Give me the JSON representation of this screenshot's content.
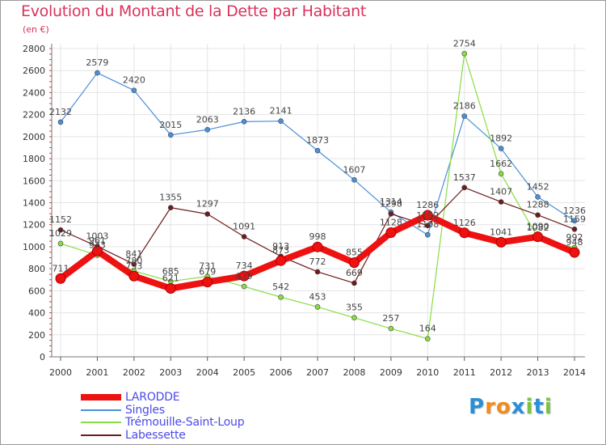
{
  "chart_data": {
    "type": "line",
    "title": "Evolution du Montant de la Dette par Habitant",
    "ylabel": "(en €)",
    "x": [
      "2000",
      "2001",
      "2002",
      "2003",
      "2004",
      "2005",
      "2006",
      "2007",
      "2008",
      "2009",
      "2010",
      "2011",
      "2012",
      "2013",
      "2014"
    ],
    "ylim": [
      0,
      2800
    ],
    "yticks": [
      "0",
      "200",
      "400",
      "600",
      "800",
      "1000",
      "1200",
      "1400",
      "1600",
      "1800",
      "2000",
      "2200",
      "2400",
      "2600",
      "2800"
    ],
    "grid": true,
    "series": [
      {
        "name": "LARODDE",
        "color": "#ee1111",
        "values": [
          711,
          961,
          733,
          621,
          679,
          734,
          873,
          998,
          855,
          1128,
          1286,
          1126,
          1041,
          1090,
          948
        ]
      },
      {
        "name": "Singles",
        "color": "#4a90d9",
        "values": [
          2132,
          2579,
          2420,
          2015,
          2063,
          2136,
          2141,
          1873,
          1607,
          1314,
          1108,
          2186,
          1892,
          1452,
          1236
        ]
      },
      {
        "name": "Trémouille-Saint-Loup",
        "color": "#88dd44",
        "values": [
          1029,
          923,
          780,
          685,
          731,
          639,
          542,
          453,
          355,
          257,
          164,
          2754,
          1662,
          1082,
          992
        ]
      },
      {
        "name": "Labessette",
        "color": "#6e1a1a",
        "values": [
          1152,
          1003,
          841,
          1355,
          1297,
          1091,
          913,
          772,
          669,
          1298,
          1192,
          1537,
          1407,
          1288,
          1159
        ]
      }
    ]
  },
  "logo": {
    "text": "Proxiti",
    "letters": [
      "P",
      "r",
      "o",
      "x",
      "i",
      "t",
      "i"
    ],
    "colors": [
      "#2a8fd6",
      "#f08c1e",
      "#f08c1e",
      "#2a8fd6",
      "#7cc242",
      "#2a8fd6",
      "#7cc242"
    ]
  }
}
